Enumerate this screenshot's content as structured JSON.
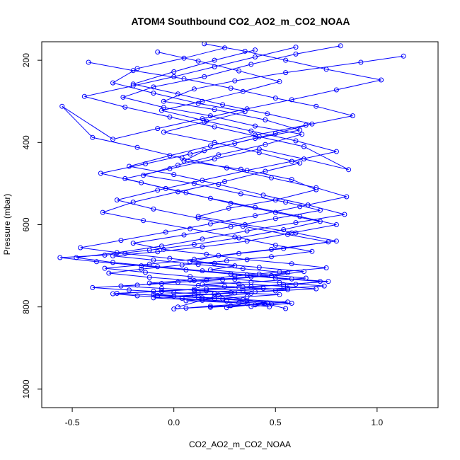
{
  "chart_data": {
    "type": "scatter",
    "title": "ATOM4 Southbound CO2_AO2_m_CO2_NOAA",
    "xlabel": "CO2_AO2_m_CO2_NOAA",
    "ylabel": "Pressure (mbar)",
    "xlim": [
      -0.65,
      1.3
    ],
    "ylim": [
      1045,
      155
    ],
    "y_reversed": true,
    "x_ticks": [
      -0.5,
      0.0,
      0.5,
      1.0
    ],
    "x_tick_labels": [
      "-0.5",
      "0.0",
      "0.5",
      "1.0"
    ],
    "y_ticks": [
      200,
      400,
      600,
      800,
      1000
    ],
    "y_tick_labels": [
      "200",
      "400",
      "600",
      "800",
      "1000"
    ],
    "grid": false,
    "marker": "open-circle",
    "connected_lines": true,
    "colors": {
      "series": "#0000ff",
      "axes": "#000000"
    },
    "series": [
      {
        "x": [
          1.13,
          0.92,
          0.55,
          0.3,
          0.1,
          -0.05,
          0.2,
          0.45,
          0.62,
          0.4,
          0.15,
          0.05,
          0.33,
          0.58,
          0.7,
          0.5,
          0.27,
          0.12,
          0.35,
          0.6,
          0.8,
          0.48,
          0.22,
          0.08,
          0.3,
          0.18,
          0.42,
          0.65,
          0.38,
          0.14,
          0.25,
          0.44,
          0.1,
          0.28,
          0.52,
          0.36,
          0.2,
          0.06,
          0.32,
          0.47
        ],
        "y": [
          190,
          205,
          230,
          250,
          270,
          300,
          320,
          345,
          370,
          390,
          420,
          445,
          465,
          490,
          515,
          540,
          560,
          580,
          600,
          620,
          640,
          660,
          675,
          690,
          700,
          710,
          720,
          730,
          740,
          745,
          750,
          755,
          760,
          765,
          770,
          775,
          780,
          785,
          790,
          800
        ]
      },
      {
        "x": [
          0.82,
          0.6,
          0.38,
          0.15,
          -0.1,
          -0.25,
          -0.05,
          0.18,
          0.4,
          0.63,
          0.45,
          0.22,
          0.02,
          -0.15,
          0.1,
          0.33,
          0.55,
          0.72,
          0.5,
          0.28,
          0.05,
          -0.2,
          -0.05,
          0.16,
          0.36,
          0.58,
          0.75,
          0.52,
          0.3,
          0.08,
          -0.12,
          0.12,
          0.34,
          0.56,
          0.4,
          0.2,
          0.0,
          0.24,
          0.46,
          0.26
        ],
        "y": [
          165,
          185,
          210,
          240,
          265,
          290,
          315,
          335,
          360,
          380,
          405,
          430,
          455,
          480,
          500,
          525,
          545,
          565,
          585,
          605,
          625,
          645,
          660,
          672,
          685,
          695,
          705,
          715,
          725,
          735,
          742,
          748,
          752,
          758,
          763,
          768,
          774,
          780,
          790,
          802
        ]
      },
      {
        "x": [
          0.25,
          0.05,
          -0.18,
          -0.3,
          -0.1,
          0.12,
          0.35,
          0.15,
          -0.05,
          0.2,
          0.42,
          0.62,
          0.45,
          0.25,
          0.02,
          -0.2,
          -0.35,
          -0.15,
          0.08,
          0.3,
          0.5,
          0.68,
          0.48,
          0.26,
          0.04,
          -0.16,
          -0.32,
          -0.12,
          0.1,
          0.32,
          0.54,
          0.7,
          0.5,
          0.3,
          0.1,
          -0.1,
          0.14,
          0.36,
          0.18,
          0.0
        ],
        "y": [
          170,
          195,
          220,
          255,
          280,
          305,
          325,
          350,
          375,
          400,
          425,
          450,
          470,
          495,
          520,
          545,
          570,
          590,
          610,
          630,
          650,
          665,
          678,
          688,
          698,
          708,
          718,
          728,
          736,
          744,
          750,
          756,
          761,
          766,
          772,
          778,
          784,
          792,
          798,
          805
        ]
      },
      {
        "x": [
          -0.42,
          -0.2,
          0.05,
          0.28,
          0.5,
          0.7,
          0.88,
          0.65,
          0.4,
          0.18,
          -0.02,
          -0.22,
          0.0,
          0.22,
          0.44,
          0.66,
          0.84,
          0.6,
          0.36,
          0.14,
          -0.06,
          -0.28,
          -0.48,
          -0.3,
          -0.08,
          0.14,
          0.36,
          0.58,
          0.76,
          0.54,
          0.32,
          0.1,
          -0.1,
          -0.3,
          -0.18,
          0.04,
          0.26,
          0.48,
          0.28,
          0.06
        ],
        "y": [
          205,
          225,
          245,
          268,
          292,
          312,
          335,
          358,
          382,
          408,
          432,
          458,
          478,
          502,
          528,
          552,
          575,
          595,
          615,
          635,
          652,
          668,
          680,
          692,
          702,
          712,
          722,
          732,
          738,
          746,
          752,
          757,
          762,
          768,
          773,
          779,
          786,
          793,
          797,
          803
        ]
      },
      {
        "x": [
          0.15,
          0.35,
          0.55,
          0.75,
          1.02,
          0.8,
          0.58,
          0.36,
          0.14,
          -0.08,
          -0.3,
          -0.55,
          -0.4,
          -0.18,
          0.04,
          0.26,
          0.48,
          0.7,
          0.85,
          0.62,
          0.4,
          0.18,
          -0.04,
          -0.26,
          -0.46,
          -0.24,
          -0.02,
          0.2,
          0.42,
          0.64,
          0.48,
          0.24,
          0.02,
          -0.18,
          -0.4,
          -0.22,
          0.0,
          0.22,
          0.44,
          0.55
        ],
        "y": [
          160,
          178,
          200,
          222,
          248,
          272,
          296,
          318,
          342,
          366,
          392,
          312,
          388,
          412,
          438,
          462,
          486,
          510,
          532,
          556,
          578,
          598,
          618,
          638,
          656,
          670,
          682,
          694,
          704,
          714,
          724,
          734,
          740,
          747,
          753,
          759,
          765,
          771,
          790,
          804
        ]
      },
      {
        "x": [
          0.4,
          0.2,
          0.0,
          -0.2,
          0.02,
          0.24,
          0.46,
          0.68,
          0.5,
          0.3,
          0.08,
          -0.14,
          -0.36,
          -0.16,
          0.06,
          0.28,
          0.5,
          0.72,
          0.54,
          0.32,
          0.1,
          -0.12,
          -0.34,
          -0.56,
          -0.38,
          -0.16,
          0.06,
          0.28,
          0.5,
          0.72,
          0.6,
          0.38,
          0.16,
          -0.06,
          -0.28,
          -0.08,
          0.14,
          0.36,
          0.58,
          0.38
        ],
        "y": [
          175,
          200,
          228,
          258,
          282,
          308,
          330,
          355,
          378,
          402,
          428,
          452,
          475,
          498,
          522,
          548,
          570,
          592,
          612,
          632,
          648,
          662,
          674,
          680,
          690,
          700,
          710,
          720,
          730,
          738,
          745,
          751,
          756,
          762,
          767,
          772,
          778,
          785,
          791,
          799
        ]
      },
      {
        "x": [
          -0.08,
          0.12,
          0.32,
          0.52,
          0.34,
          0.14,
          -0.06,
          0.16,
          0.38,
          0.6,
          0.8,
          0.58,
          0.36,
          0.14,
          -0.08,
          -0.28,
          -0.1,
          0.12,
          0.34,
          0.56,
          0.76,
          0.54,
          0.32,
          0.1,
          -0.12,
          -0.34,
          -0.14,
          0.08,
          0.3,
          0.52,
          0.74,
          0.56,
          0.34,
          0.12,
          -0.1,
          0.12,
          0.34,
          0.56,
          0.4,
          0.18
        ],
        "y": [
          180,
          202,
          226,
          252,
          276,
          300,
          322,
          348,
          372,
          396,
          422,
          446,
          468,
          492,
          516,
          540,
          562,
          584,
          604,
          624,
          642,
          658,
          670,
          684,
          696,
          706,
          716,
          726,
          733,
          741,
          749,
          754,
          760,
          765,
          770,
          776,
          782,
          788,
          795,
          801
        ]
      },
      {
        "x": [
          0.6,
          0.4,
          0.2,
          0.0,
          -0.2,
          -0.44,
          -0.24,
          -0.02,
          0.2,
          0.42,
          0.64,
          0.86,
          0.64,
          0.42,
          0.2,
          -0.02,
          -0.24,
          -0.04,
          0.18,
          0.4,
          0.62,
          0.8,
          0.58,
          0.36,
          0.14,
          -0.08,
          -0.3,
          -0.1,
          0.12,
          0.34,
          0.56,
          0.38,
          0.16,
          -0.06,
          -0.26,
          -0.06,
          0.16,
          0.38,
          0.2,
          0.02
        ],
        "y": [
          168,
          192,
          216,
          240,
          262,
          288,
          314,
          338,
          362,
          386,
          410,
          466,
          440,
          416,
          440,
          464,
          488,
          512,
          536,
          558,
          580,
          600,
          620,
          640,
          654,
          666,
          676,
          686,
          697,
          707,
          717,
          727,
          735,
          743,
          749,
          755,
          761,
          767,
          775,
          800
        ]
      }
    ]
  }
}
